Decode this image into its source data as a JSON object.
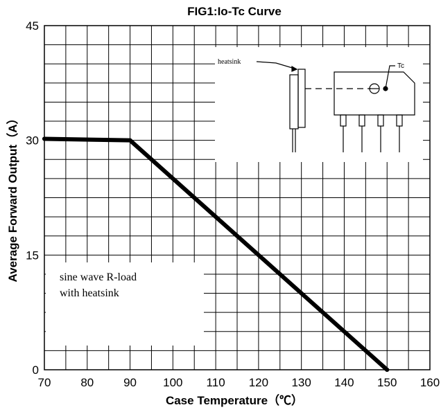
{
  "chart_data": {
    "type": "line",
    "title": "FIG1:Io-Tc Curve",
    "xlabel": "Case Temperature（℃）",
    "ylabel": "Average Forward Output（A）",
    "xlim": [
      70,
      160
    ],
    "ylim": [
      0,
      45
    ],
    "x_ticks": [
      "70",
      "80",
      "90",
      "100",
      "110",
      "120",
      "130",
      "140",
      "150",
      "160"
    ],
    "y_ticks": [
      "0",
      "15",
      "30",
      "45"
    ],
    "grid": true,
    "series": [
      {
        "x": [
          70,
          90,
          150
        ],
        "y": [
          30.2,
          30.0,
          0
        ]
      }
    ],
    "annotations": {
      "note_line1": "sine wave R-load",
      "note_line2": "with heatsink",
      "heatsink_label": "heatsink",
      "tc_label": "Tc"
    },
    "line_color": "#000000"
  }
}
